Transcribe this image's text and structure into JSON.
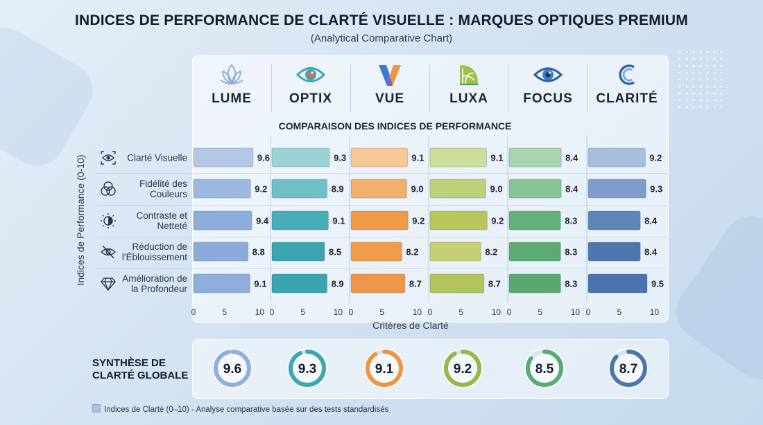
{
  "title": "INDICES DE PERFORMANCE DE CLARTÉ VISUELLE : MARQUES OPTIQUES PREMIUM",
  "subtitle": "(Analytical Comparative Chart)",
  "section_title": "COMPARAISON DES INDICES DE PERFORMANCE",
  "brands": [
    {
      "name": "LUME",
      "icon": "lotus-icon",
      "color": "#8fb0dc"
    },
    {
      "name": "OPTIX",
      "icon": "eye-icon",
      "color": "#3aa8b2"
    },
    {
      "name": "VUE",
      "icon": "v-logo-icon",
      "color": "#f0953f"
    },
    {
      "name": "LUXA",
      "icon": "leaf-icon",
      "color": "#9ab548"
    },
    {
      "name": "FOCUS",
      "icon": "eye-icon",
      "color": "#5aaa72"
    },
    {
      "name": "CLARITÉ",
      "icon": "c-logo-icon",
      "color": "#4a78ae"
    }
  ],
  "criteria": [
    {
      "label": "Clarté Visuelle",
      "icon": "eye-scan-icon"
    },
    {
      "label": "Fidélité des Couleurs",
      "icon": "color-circles-icon"
    },
    {
      "label": "Contraste et Netteté",
      "icon": "contrast-icon"
    },
    {
      "label": "Réduction de l'Éblouissement",
      "icon": "eye-slash-icon"
    },
    {
      "label": "Amélioration de la Profondeur",
      "icon": "diamond-icon"
    }
  ],
  "summary": {
    "title": "SYNTHÈSE DE CLARTÉ GLOBALE",
    "scores": [
      "9.6",
      "9.3",
      "9.1",
      "9.2",
      "8.5",
      "8.7"
    ]
  },
  "footnote": "Indices de Clarté (0–10) - Analyse comparative basée sur des tests standardisés",
  "chart_data": {
    "type": "bar",
    "orientation": "horizontal",
    "layout": "small-multiples",
    "title": "COMPARAISON DES INDICES DE PERFORMANCE",
    "xlabel": "Critères de Clarté",
    "ylabel": "Indices de Performance (0-10)",
    "xlim": [
      0,
      10
    ],
    "xticks": [
      "0",
      "5",
      "10"
    ],
    "categories": [
      "Clarté Visuelle",
      "Fidélité des Couleurs",
      "Contraste et Netteté",
      "Réduction de l'Éblouissement",
      "Amélioration de la Profondeur"
    ],
    "series": [
      {
        "name": "LUME",
        "values": [
          9.6,
          9.2,
          9.4,
          8.8,
          9.1
        ],
        "colors": [
          "#b4c8e6",
          "#9ab8e0",
          "#8daedc",
          "#8bacda",
          "#8eaedc"
        ]
      },
      {
        "name": "OPTIX",
        "values": [
          9.3,
          8.9,
          9.1,
          8.5,
          8.9
        ],
        "colors": [
          "#9dd2d4",
          "#6ec0c4",
          "#46aeb6",
          "#3ba4ae",
          "#3aa4ae"
        ]
      },
      {
        "name": "VUE",
        "values": [
          9.1,
          9.0,
          9.2,
          8.2,
          8.7
        ],
        "colors": [
          "#f6c896",
          "#f3b06a",
          "#ef9a48",
          "#f09c4c",
          "#ee964a"
        ]
      },
      {
        "name": "LUXA",
        "values": [
          9.1,
          9.0,
          9.2,
          8.2,
          8.7
        ],
        "colors": [
          "#cfdd9a",
          "#bdd078",
          "#b8c65c",
          "#c6cf72",
          "#b3c45e"
        ]
      },
      {
        "name": "FOCUS",
        "values": [
          8.4,
          8.4,
          8.3,
          8.3,
          8.3
        ],
        "colors": [
          "#a8d4b2",
          "#86c496",
          "#62b27a",
          "#5caa74",
          "#5aa86e"
        ]
      },
      {
        "name": "CLARITÉ",
        "values": [
          9.2,
          9.3,
          8.4,
          8.4,
          9.5
        ],
        "colors": [
          "#a9bedc",
          "#7f9dca",
          "#5f84b8",
          "#4e76ae",
          "#4a72ac"
        ]
      }
    ],
    "value_labels": [
      [
        "9.6",
        "9.2",
        "9.4",
        "8.8",
        "9.1"
      ],
      [
        "9.3",
        "8.9",
        "9.1",
        "8.5",
        "8.9"
      ],
      [
        "9.1",
        "9.0",
        "9.2",
        "8.2",
        "8.7"
      ],
      [
        "9.1",
        "9.0",
        "9.2",
        "8.2",
        "8.7"
      ],
      [
        "8.4",
        "8.4",
        "8.3",
        "8.3",
        "8.3"
      ],
      [
        "9.2",
        "9.3",
        "8.4",
        "8.4",
        "9.5"
      ]
    ],
    "grid": false,
    "legend": "none"
  }
}
